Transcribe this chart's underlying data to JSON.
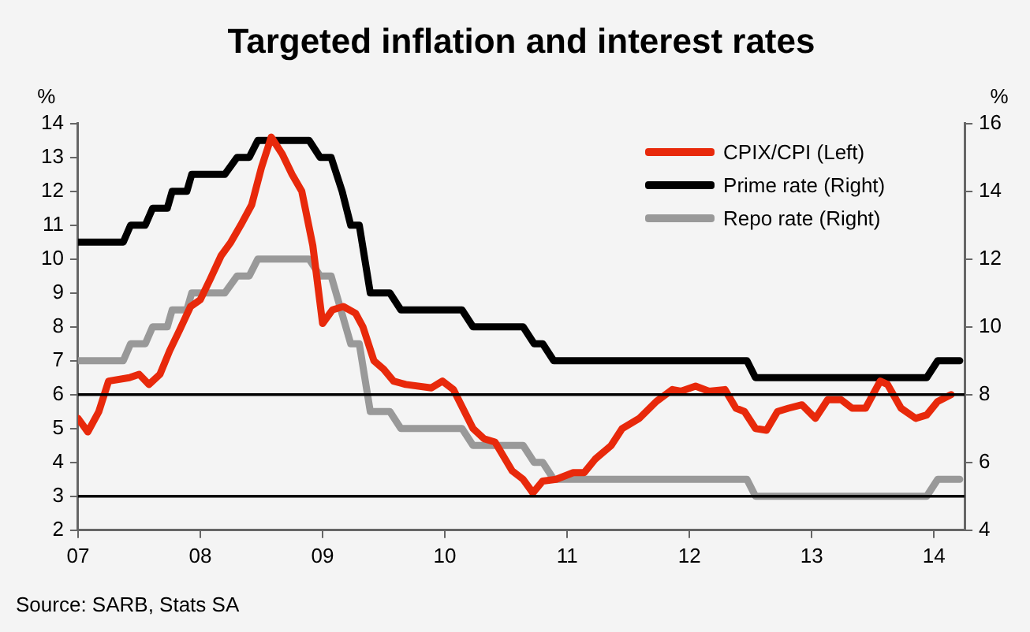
{
  "chart_data": {
    "type": "line",
    "title": "Targeted inflation and interest rates",
    "ylabel": "%",
    "y2label": "%",
    "xlim": [
      2007,
      2014.25
    ],
    "xticks": [
      {
        "value": 2007,
        "label": "07"
      },
      {
        "value": 2008,
        "label": "08"
      },
      {
        "value": 2009,
        "label": "09"
      },
      {
        "value": 2010,
        "label": "10"
      },
      {
        "value": 2011,
        "label": "11"
      },
      {
        "value": 2012,
        "label": "12"
      },
      {
        "value": 2013,
        "label": "13"
      },
      {
        "value": 2014,
        "label": "14"
      }
    ],
    "ylim": [
      2,
      14
    ],
    "yticks": [
      2,
      3,
      4,
      5,
      6,
      7,
      8,
      9,
      10,
      11,
      12,
      13,
      14
    ],
    "y2lim": [
      4,
      16
    ],
    "y2ticks": [
      4,
      6,
      8,
      10,
      12,
      14,
      16
    ],
    "legend": "top right",
    "marker": "none",
    "series": [
      {
        "name": "CPIX/CPI (Left)",
        "color": "#e8290b",
        "x": [
          2007.0,
          2007.08,
          2007.17,
          2007.25,
          2007.42,
          2007.5,
          2007.58,
          2007.67,
          2007.75,
          2007.83,
          2007.92,
          2008.0,
          2008.08,
          2008.17,
          2008.25,
          2008.33,
          2008.42,
          2008.5,
          2008.58,
          2008.67,
          2008.75,
          2008.83,
          2008.92,
          2009.0,
          2009.08,
          2009.17,
          2009.27,
          2009.33,
          2009.42,
          2009.5,
          2009.58,
          2009.68,
          2009.89,
          2009.98,
          2010.07,
          2010.23,
          2010.32,
          2010.41,
          2010.55,
          2010.64,
          2010.72,
          2010.8,
          2010.91,
          2011.05,
          2011.14,
          2011.23,
          2011.36,
          2011.45,
          2011.59,
          2011.73,
          2011.86,
          2011.93,
          2012.05,
          2012.16,
          2012.29,
          2012.38,
          2012.45,
          2012.54,
          2012.63,
          2012.72,
          2012.81,
          2012.92,
          2013.03,
          2013.13,
          2013.24,
          2013.33,
          2013.44,
          2013.56,
          2013.62,
          2013.73,
          2013.85,
          2013.94,
          2014.03,
          2014.14
        ],
        "values": [
          5.3,
          4.9,
          5.5,
          6.4,
          6.5,
          6.6,
          6.3,
          6.6,
          7.3,
          7.9,
          8.6,
          8.8,
          9.4,
          10.1,
          10.5,
          11.0,
          11.6,
          12.7,
          13.6,
          13.1,
          12.5,
          12.0,
          10.4,
          8.1,
          8.5,
          8.6,
          8.4,
          8.0,
          7.0,
          6.75,
          6.4,
          6.3,
          6.2,
          6.4,
          6.15,
          5.0,
          4.7,
          4.6,
          3.75,
          3.5,
          3.1,
          3.45,
          3.5,
          3.7,
          3.7,
          4.1,
          4.5,
          5.0,
          5.3,
          5.8,
          6.15,
          6.1,
          6.25,
          6.1,
          6.15,
          5.6,
          5.5,
          5.0,
          4.95,
          5.5,
          5.6,
          5.7,
          5.3,
          5.85,
          5.85,
          5.6,
          5.6,
          6.4,
          6.3,
          5.6,
          5.3,
          5.4,
          5.8,
          6.0
        ]
      },
      {
        "name": "Prime rate (Right)",
        "color": "#000000",
        "axis": "y2",
        "x": [
          2007.0,
          2007.37,
          2007.43,
          2007.55,
          2007.61,
          2007.73,
          2007.77,
          2007.89,
          2007.93,
          2008.2,
          2008.3,
          2008.4,
          2008.47,
          2008.89,
          2008.98,
          2009.07,
          2009.16,
          2009.23,
          2009.3,
          2009.39,
          2009.55,
          2009.64,
          2010.14,
          2010.23,
          2010.64,
          2010.73,
          2010.8,
          2010.89,
          2012.47,
          2012.54,
          2013.94,
          2014.03,
          2014.21
        ],
        "values": [
          12.5,
          12.5,
          13.0,
          13.0,
          13.5,
          13.5,
          14.0,
          14.0,
          14.5,
          14.5,
          15.0,
          15.0,
          15.5,
          15.5,
          15.0,
          15.0,
          14.0,
          13.0,
          13.0,
          11.0,
          11.0,
          10.5,
          10.5,
          10.0,
          10.0,
          9.5,
          9.5,
          9.0,
          9.0,
          8.5,
          8.5,
          9.0,
          9.0
        ]
      },
      {
        "name": "Repo rate (Right)",
        "color": "#999999",
        "axis": "y2",
        "x": [
          2007.0,
          2007.37,
          2007.43,
          2007.55,
          2007.61,
          2007.73,
          2007.77,
          2007.89,
          2007.93,
          2008.2,
          2008.3,
          2008.4,
          2008.47,
          2008.89,
          2008.98,
          2009.07,
          2009.23,
          2009.3,
          2009.39,
          2009.55,
          2009.64,
          2010.14,
          2010.23,
          2010.64,
          2010.73,
          2010.8,
          2010.89,
          2012.47,
          2012.54,
          2013.94,
          2014.03,
          2014.21
        ],
        "values": [
          9.0,
          9.0,
          9.5,
          9.5,
          10.0,
          10.0,
          10.5,
          10.5,
          11.0,
          11.0,
          11.5,
          11.5,
          12.0,
          12.0,
          11.5,
          11.5,
          9.5,
          9.5,
          7.5,
          7.5,
          7.0,
          7.0,
          6.5,
          6.5,
          6.0,
          6.0,
          5.5,
          5.5,
          5.0,
          5.0,
          5.5,
          5.5
        ]
      }
    ],
    "ref_lines": [
      {
        "axis": "y",
        "value": 6,
        "color": "#000000"
      },
      {
        "axis": "y",
        "value": 3,
        "color": "#000000"
      }
    ],
    "annotations": [
      "Source: SARB, Stats SA"
    ]
  }
}
